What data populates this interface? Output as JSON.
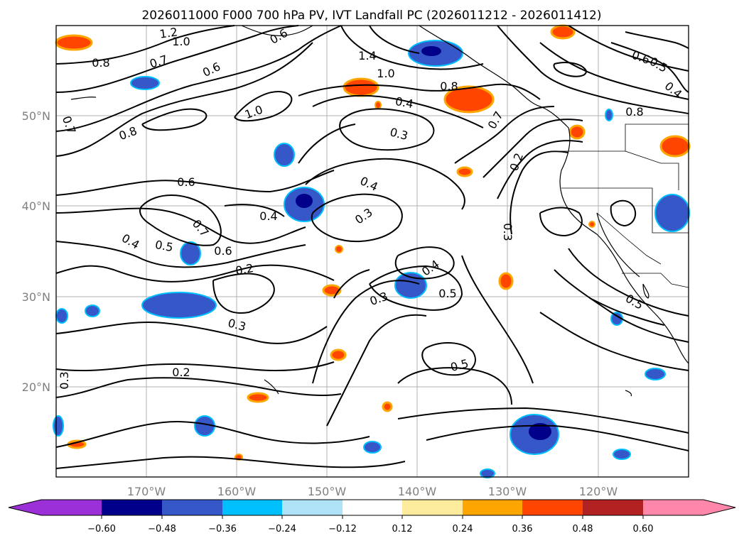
{
  "title": "2026011000 F000 700 hPa PV, IVT Landfall PC (2026011212 - 2026011412)",
  "map": {
    "lat_labels": [
      "50°N",
      "40°N",
      "30°N",
      "20°N"
    ],
    "lon_labels": [
      "170°W",
      "160°W",
      "150°W",
      "140°W",
      "130°W",
      "120°W"
    ],
    "lat_range": [
      10,
      60
    ],
    "lon_range": [
      -180,
      -110
    ],
    "contour_labels": [
      "1.2",
      "1.0",
      "0.6",
      "0.8",
      "0.7",
      "0.6",
      "1.4",
      "1.0",
      "0.8",
      "0.6",
      "0.5",
      "0.4",
      "0.7",
      "1.0",
      "0.8",
      "0.4",
      "0.3",
      "0.7",
      "0.2",
      "0.8",
      "0.6",
      "0.4",
      "0.4",
      "0.3",
      "0.7",
      "0.4",
      "0.5",
      "0.6",
      "0.2",
      "0.3",
      "0.4",
      "0.5",
      "0.3",
      "0.3",
      "0.5",
      "0.2",
      "0.3",
      "0.5"
    ]
  },
  "colorbar": {
    "ticks": [
      "−0.60",
      "−0.48",
      "−0.36",
      "−0.24",
      "−0.12",
      "0.12",
      "0.24",
      "0.36",
      "0.48",
      "0.60"
    ],
    "colors": [
      "#9b30d9",
      "#00008b",
      "#3657c8",
      "#00bfff",
      "#aee3f7",
      "#ffffff",
      "#fceb9c",
      "#ffa500",
      "#ff4500",
      "#b22222",
      "#ff88aa"
    ]
  }
}
